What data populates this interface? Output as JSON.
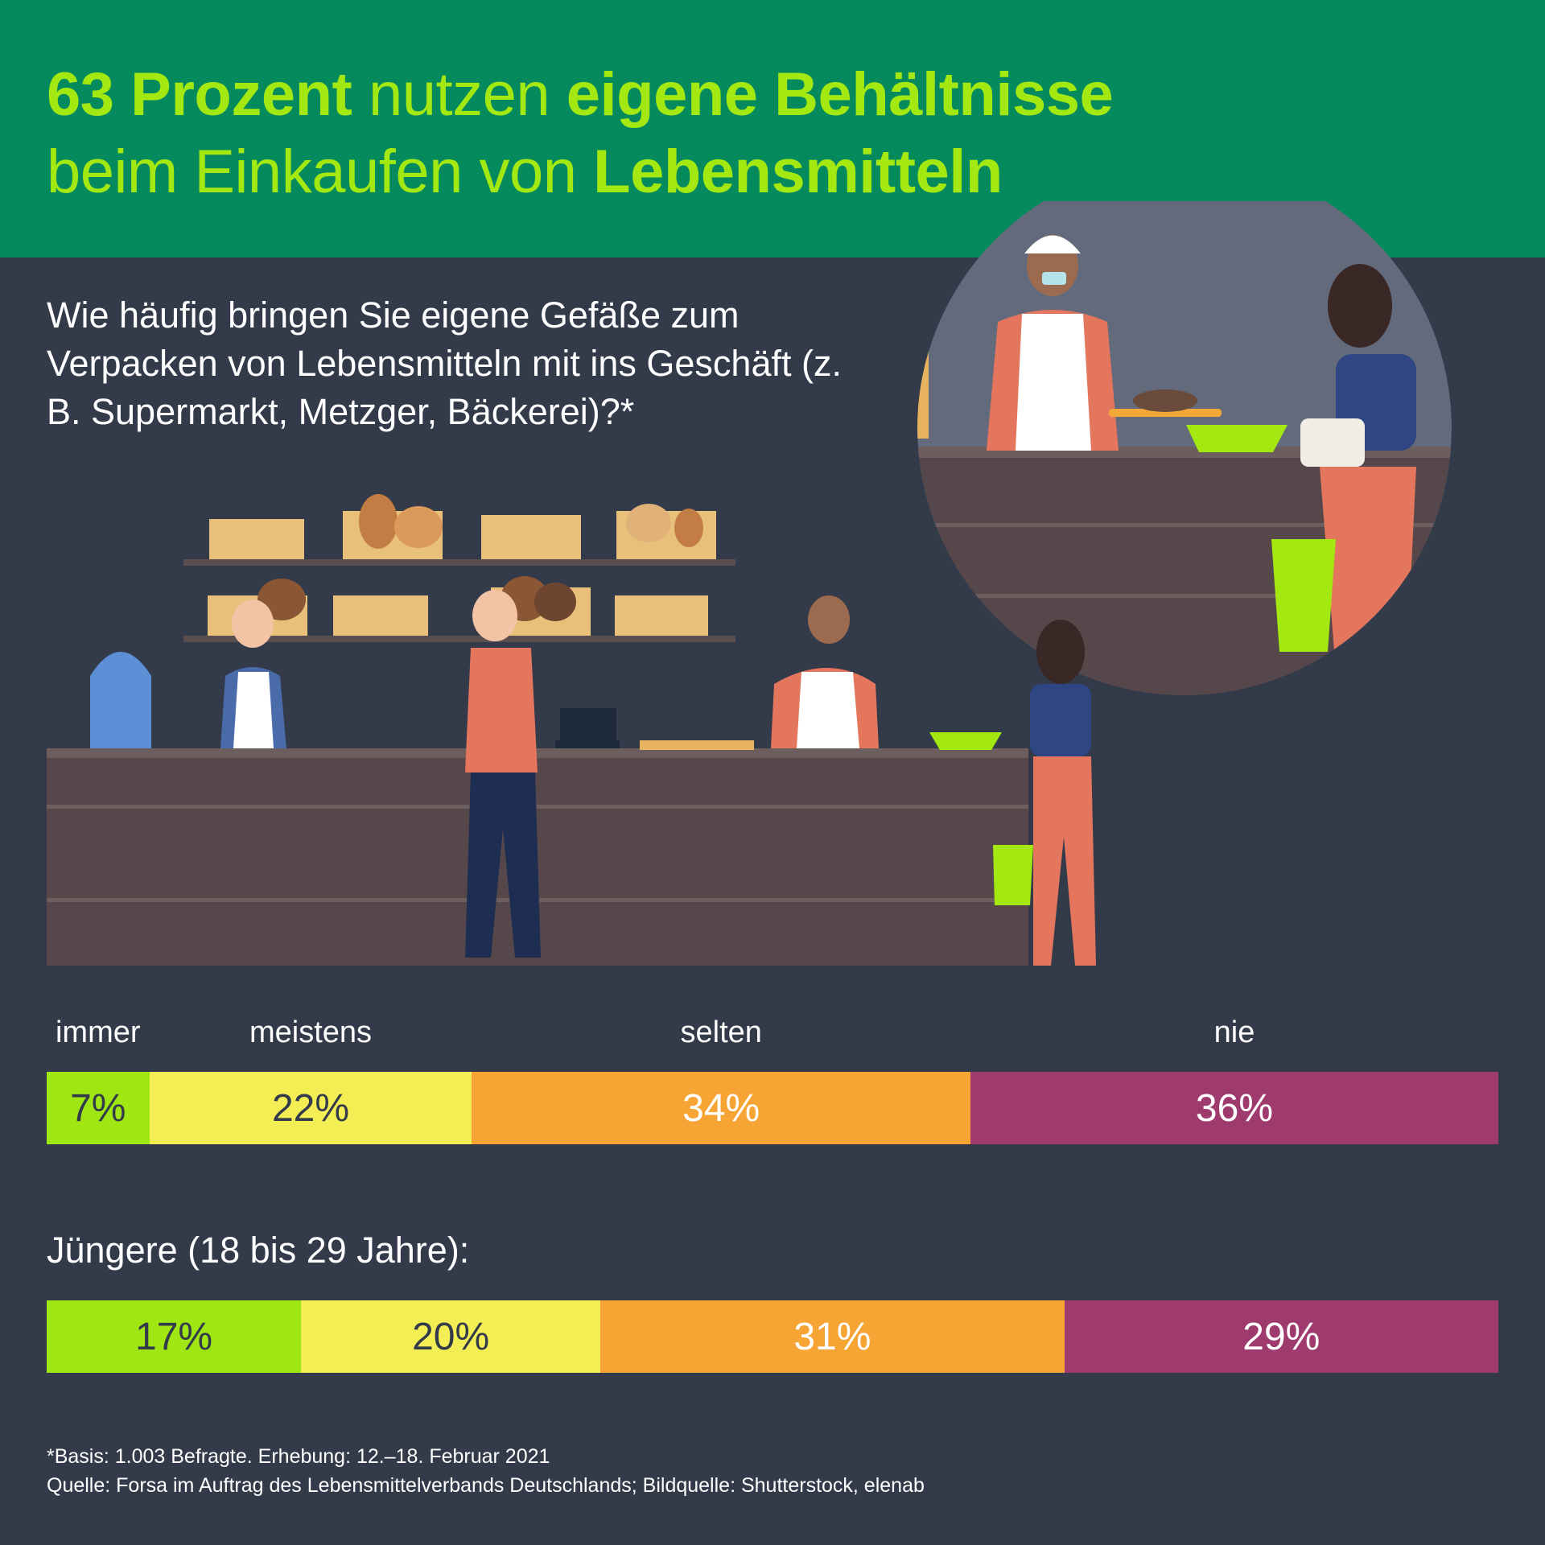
{
  "title": {
    "part1_bold": "63 Prozent",
    "part2": " nutzen ",
    "part3_bold": "eigene Behältnisse",
    "part4": "beim Einkaufen von ",
    "part5_bold": "Lebensmitteln"
  },
  "question": "Wie häufig bringen Sie eigene Gefäße zum Verpacken von Lebensmitteln mit ins Geschäft (z. B. Supermarkt, Metzger, Bäckerei)?*",
  "chart_data": [
    {
      "type": "bar",
      "stacked": true,
      "orientation": "horizontal",
      "categories": [
        "immer",
        "meistens",
        "selten",
        "nie"
      ],
      "values": [
        7,
        22,
        34,
        36
      ],
      "value_labels": [
        "7%",
        "22%",
        "34%",
        "36%"
      ],
      "colors": [
        "#9fe612",
        "#f4ee55",
        "#f6a433",
        "#9e3a6e"
      ]
    },
    {
      "type": "bar",
      "stacked": true,
      "orientation": "horizontal",
      "title": "Jüngere (18 bis 29 Jahre):",
      "categories": [
        "immer",
        "meistens",
        "selten",
        "nie"
      ],
      "values": [
        17,
        20,
        31,
        29
      ],
      "value_labels": [
        "17%",
        "20%",
        "31%",
        "29%"
      ],
      "colors": [
        "#9fe612",
        "#f4ee55",
        "#f6a433",
        "#9e3a6e"
      ]
    }
  ],
  "text_colors": [
    "#333a4a",
    "#333a4a",
    "#ffffff",
    "#ffffff"
  ],
  "footnote": {
    "line1": "*Basis: 1.003 Befragte. Erhebung: 12.–18. Februar 2021",
    "line2": "Quelle: Forsa im Auftrag des Lebensmittelverbands Deutschlands; Bildquelle: Shutterstock, elenab"
  },
  "colors": {
    "header": "#058a5e",
    "accent": "#a4e812",
    "background": "#333a4a"
  }
}
